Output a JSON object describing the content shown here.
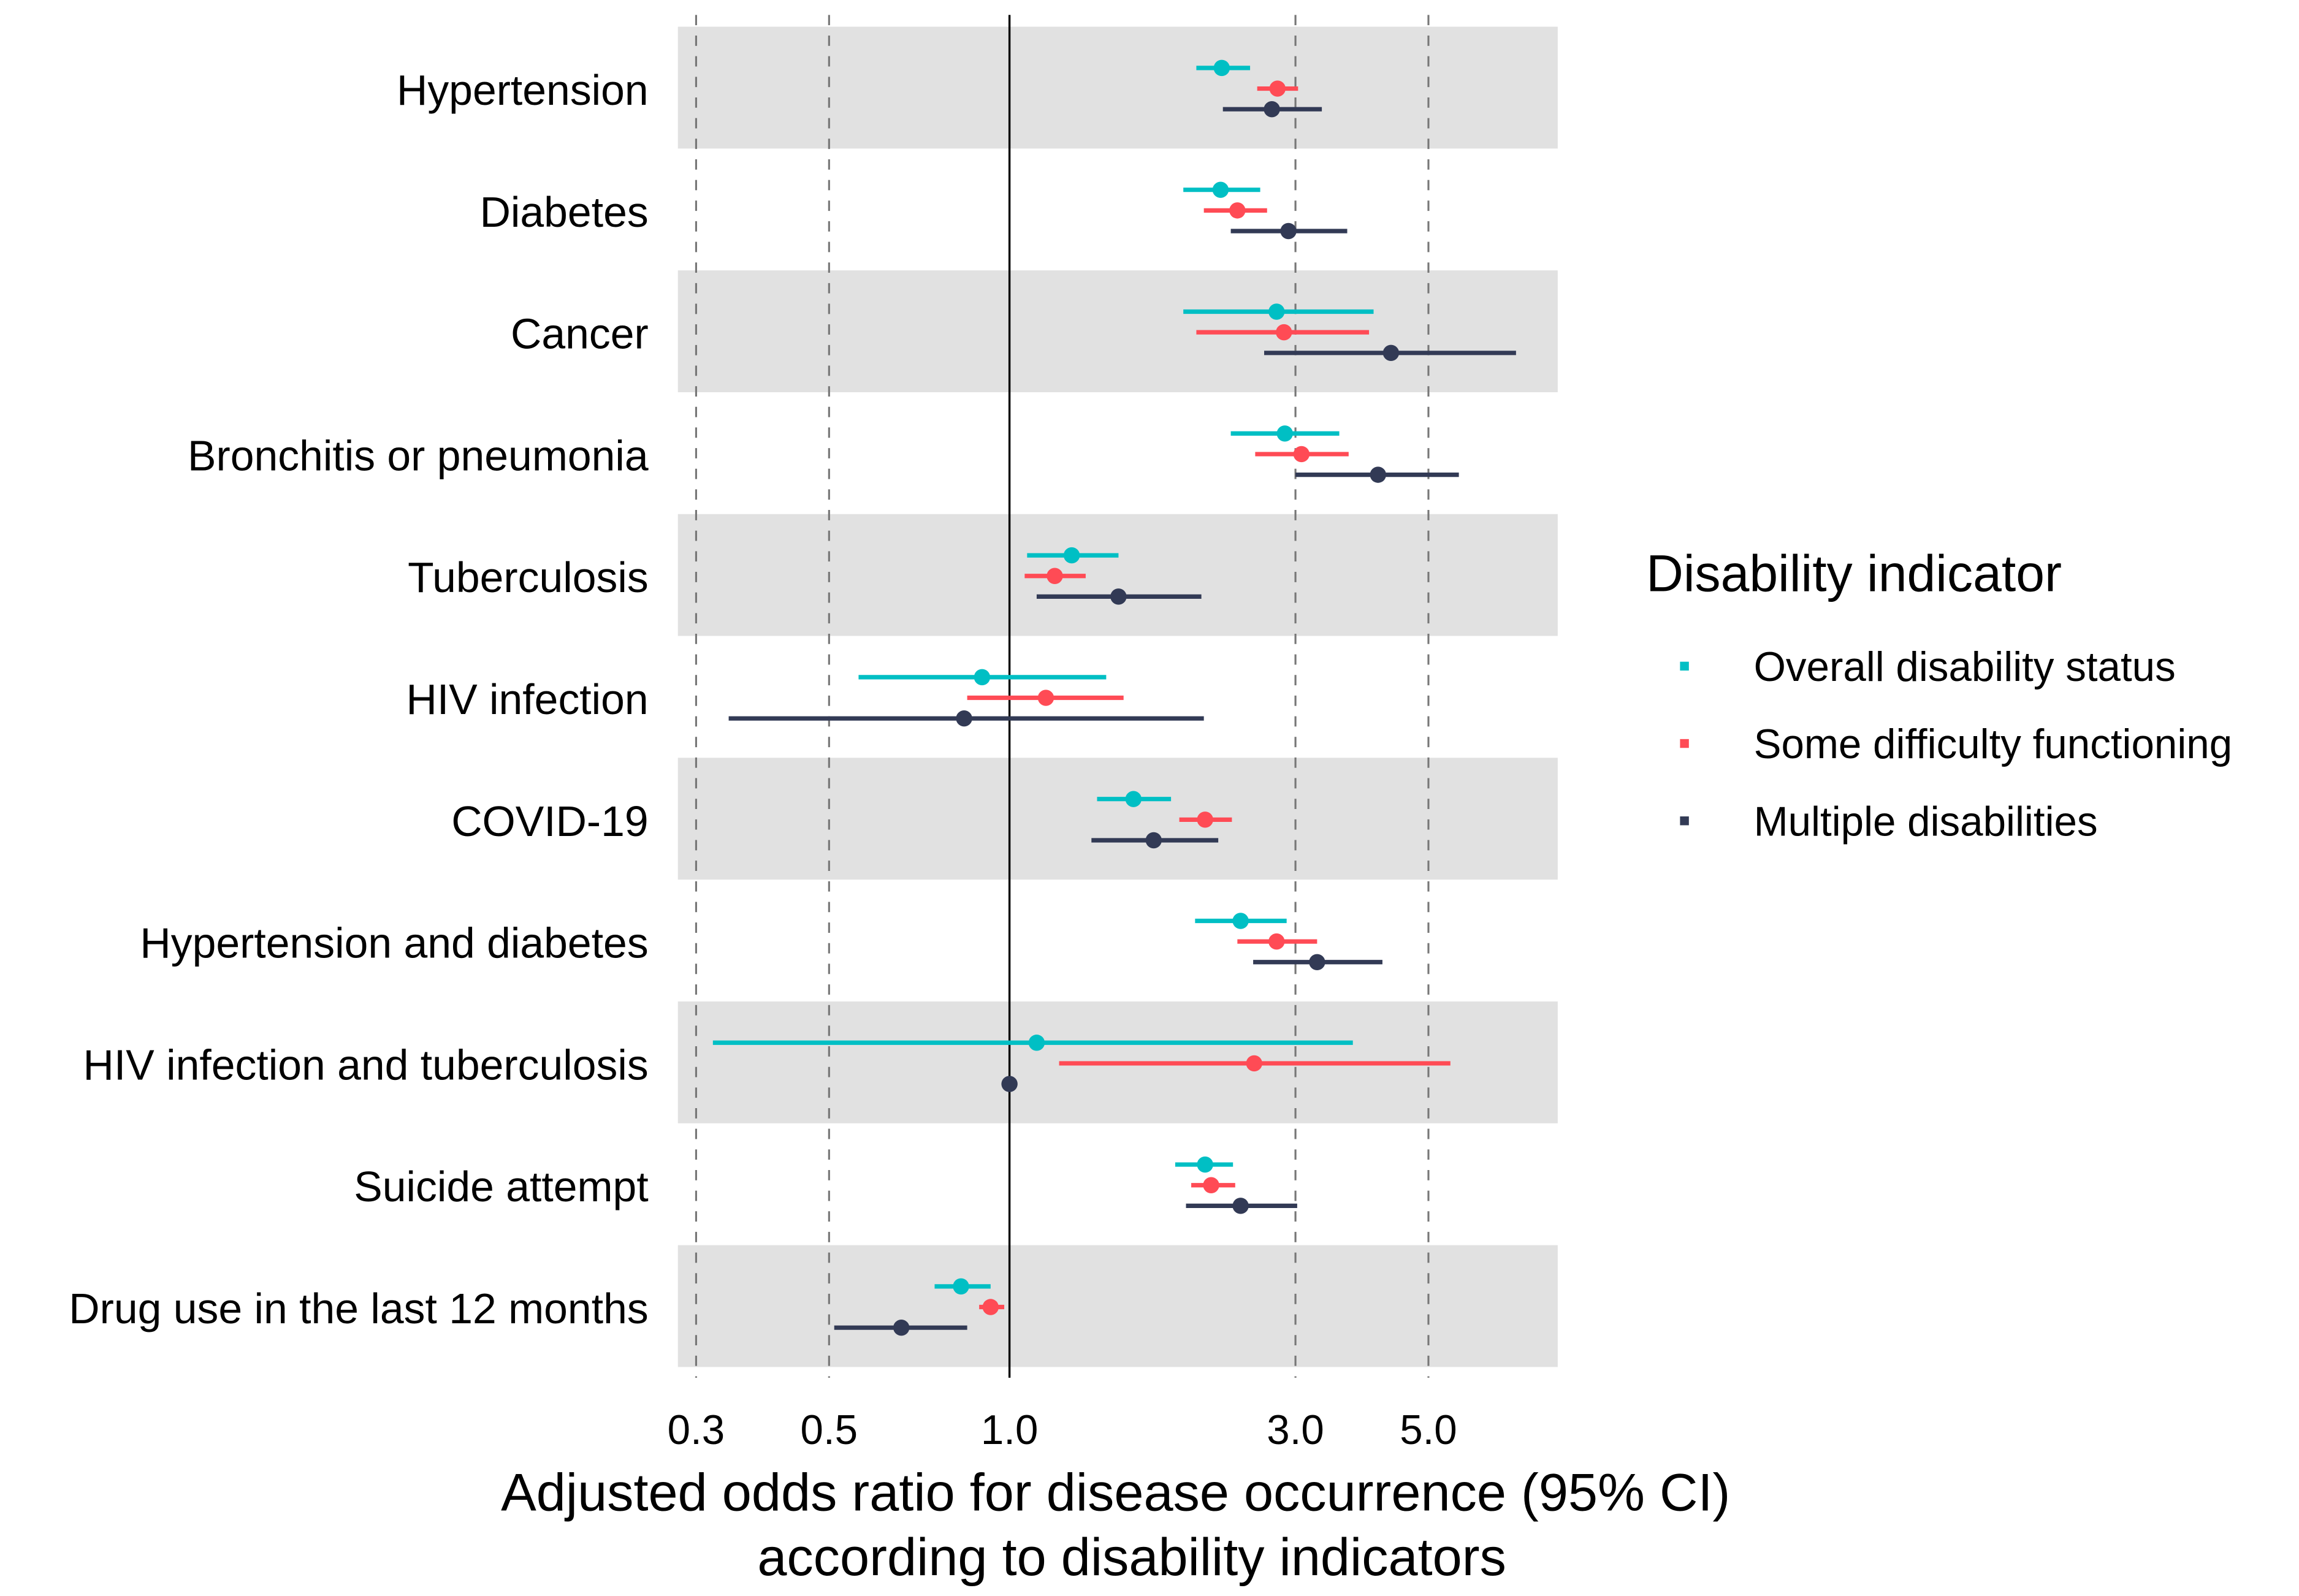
{
  "chart_data": {
    "type": "forest",
    "xlabel": "Adjusted odds ratio for disease occurrence (95% CI)\naccording to disability indicators",
    "xlabel_lines": [
      "Adjusted odds ratio for disease occurrence (95% CI)",
      "according to disability indicators"
    ],
    "x_scale": "log",
    "xlim": [
      0.29,
      8.0
    ],
    "x_ticks": [
      0.3,
      0.5,
      1.0,
      3.0,
      5.0
    ],
    "x_tick_labels": [
      "0.3",
      "0.5",
      "1.0",
      "3.0",
      "5.0"
    ],
    "reference_line": 1.0,
    "grid": "dashed vertical at ticks",
    "legend": {
      "title": "Disability indicator",
      "position": "right",
      "entries": [
        "Overall disability status",
        "Some difficulty functioning",
        "Multiple disabilities"
      ]
    },
    "colors": {
      "Overall disability status": "#00BFC4",
      "Some difficulty functioning": "#FF4B55",
      "Multiple disabilities": "#323A55",
      "band": "#E1E1E1"
    },
    "categories": [
      "Hypertension",
      "Diabetes",
      "Cancer",
      "Bronchitis or pneumonia",
      "Tuberculosis",
      "HIV infection",
      "COVID-19",
      "Hypertension and diabetes",
      "HIV infection and tuberculosis",
      "Suicide attempt",
      "Drug use in the last 12 months"
    ],
    "series": [
      {
        "name": "Overall disability status",
        "or": [
          2.26,
          2.25,
          2.79,
          2.88,
          1.27,
          0.9,
          1.61,
          2.43,
          1.11,
          2.12,
          0.83
        ],
        "lo": [
          2.05,
          1.95,
          1.95,
          2.34,
          1.07,
          0.56,
          1.4,
          2.04,
          0.32,
          1.89,
          0.75
        ],
        "hi": [
          2.52,
          2.62,
          4.05,
          3.55,
          1.52,
          1.45,
          1.86,
          2.9,
          3.74,
          2.36,
          0.93
        ]
      },
      {
        "name": "Some difficulty functioning",
        "or": [
          2.8,
          2.4,
          2.87,
          3.07,
          1.19,
          1.15,
          2.12,
          2.79,
          2.56,
          2.17,
          0.93
        ],
        "lo": [
          2.59,
          2.11,
          2.05,
          2.57,
          1.06,
          0.85,
          1.92,
          2.4,
          1.21,
          2.01,
          0.89
        ],
        "hi": [
          3.03,
          2.69,
          3.98,
          3.68,
          1.34,
          1.55,
          2.35,
          3.26,
          5.44,
          2.38,
          0.98
        ]
      },
      {
        "name": "Multiple disabilities",
        "or": [
          2.74,
          2.92,
          4.33,
          4.12,
          1.52,
          0.84,
          1.74,
          3.26,
          1.0,
          2.43,
          0.66
        ],
        "lo": [
          2.27,
          2.34,
          2.66,
          3.0,
          1.11,
          0.34,
          1.37,
          2.55,
          1.0,
          1.97,
          0.51
        ],
        "hi": [
          3.32,
          3.66,
          7.0,
          5.62,
          2.09,
          2.11,
          2.23,
          4.19,
          1.0,
          3.02,
          0.85
        ]
      }
    ]
  }
}
